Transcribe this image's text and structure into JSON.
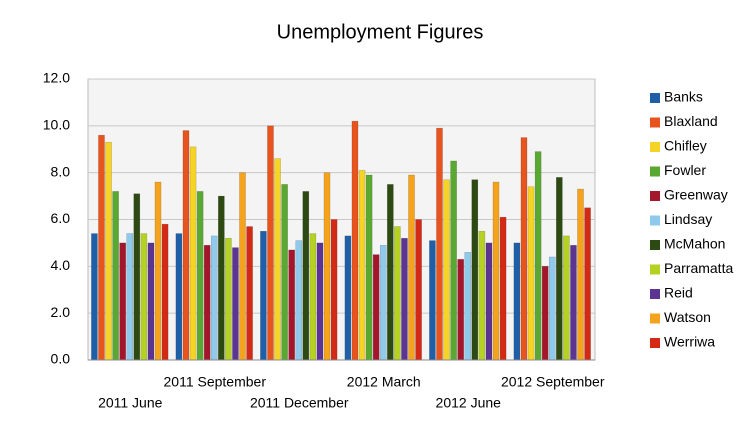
{
  "chart_data": {
    "type": "bar",
    "title": "Unemployment Figures",
    "categories": [
      "2011 June",
      "2011 September",
      "2011 December",
      "2012 March",
      "2012 June",
      "2012 September"
    ],
    "series": [
      {
        "name": "Banks",
        "color": "#1f5fa8",
        "values": [
          5.4,
          5.4,
          5.5,
          5.3,
          5.1,
          5.0
        ]
      },
      {
        "name": "Blaxland",
        "color": "#e8541e",
        "values": [
          9.6,
          9.8,
          10.0,
          10.2,
          9.9,
          9.5
        ]
      },
      {
        "name": "Chifley",
        "color": "#f5d327",
        "values": [
          9.3,
          9.1,
          8.6,
          8.1,
          7.7,
          7.4
        ]
      },
      {
        "name": "Fowler",
        "color": "#5aa832",
        "values": [
          7.2,
          7.2,
          7.5,
          7.9,
          8.5,
          8.9
        ]
      },
      {
        "name": "Greenway",
        "color": "#a3162b",
        "values": [
          5.0,
          4.9,
          4.7,
          4.5,
          4.3,
          4.0
        ]
      },
      {
        "name": "Lindsay",
        "color": "#8fc9ec",
        "values": [
          5.4,
          5.3,
          5.1,
          4.9,
          4.6,
          4.4
        ]
      },
      {
        "name": "McMahon",
        "color": "#2d4a13",
        "values": [
          7.1,
          7.0,
          7.2,
          7.5,
          7.7,
          7.8
        ]
      },
      {
        "name": "Parramatta",
        "color": "#b5d121",
        "values": [
          5.4,
          5.2,
          5.4,
          5.7,
          5.5,
          5.3
        ]
      },
      {
        "name": "Reid",
        "color": "#5b3591",
        "values": [
          5.0,
          4.8,
          5.0,
          5.2,
          5.0,
          4.9
        ]
      },
      {
        "name": "Watson",
        "color": "#f5a31c",
        "values": [
          7.6,
          8.0,
          8.0,
          7.9,
          7.6,
          7.3
        ]
      },
      {
        "name": "Werriwa",
        "color": "#d42a15",
        "values": [
          5.8,
          5.7,
          6.0,
          6.0,
          6.1,
          6.5
        ]
      }
    ],
    "ylim": [
      0,
      12
    ],
    "yticks": [
      {
        "value": 0,
        "label": "0.0"
      },
      {
        "value": 2,
        "label": "2.0"
      },
      {
        "value": 4,
        "label": "4.0"
      },
      {
        "value": 6,
        "label": "6.0"
      },
      {
        "value": 8,
        "label": "8.0"
      },
      {
        "value": 10,
        "label": "10.0"
      },
      {
        "value": 12,
        "label": "12.0"
      }
    ],
    "grid": true,
    "legend": "right"
  }
}
